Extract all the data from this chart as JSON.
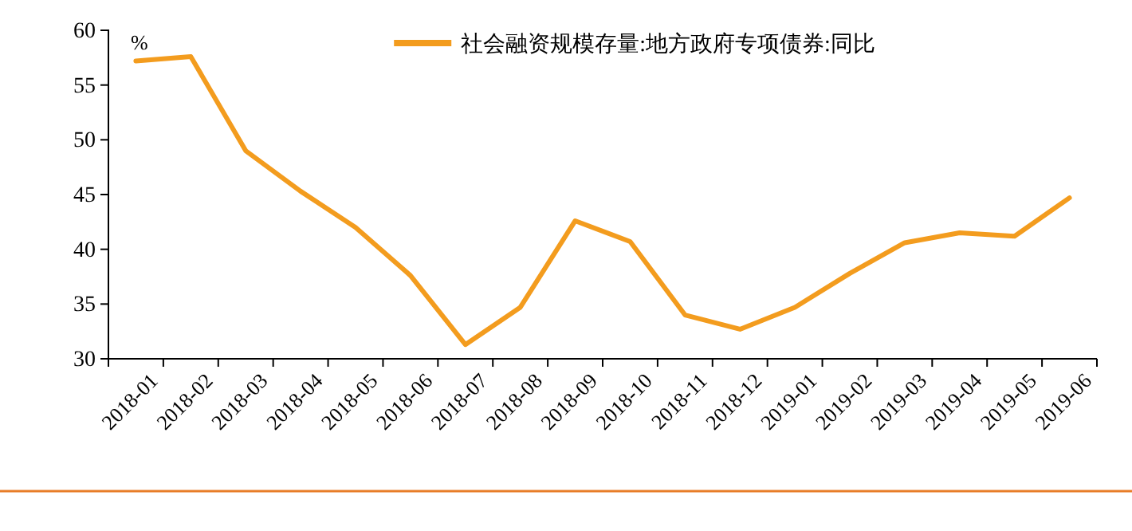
{
  "chart_data": {
    "type": "line",
    "ylabel": "%",
    "categories": [
      "2018-01",
      "2018-02",
      "2018-03",
      "2018-04",
      "2018-05",
      "2018-06",
      "2018-07",
      "2018-08",
      "2018-09",
      "2018-10",
      "2018-11",
      "2018-12",
      "2019-01",
      "2019-02",
      "2019-03",
      "2019-04",
      "2019-05",
      "2019-06"
    ],
    "series": [
      {
        "name": "社会融资规模存量:地方政府专项债券:同比",
        "color": "#f39c1e",
        "values": [
          57.2,
          57.6,
          49.0,
          45.3,
          42.0,
          37.6,
          31.3,
          34.7,
          42.6,
          40.7,
          34.0,
          32.7,
          34.7,
          37.8,
          40.6,
          41.5,
          41.2,
          44.7
        ]
      }
    ],
    "ylim": [
      30,
      60
    ],
    "yticks": [
      30,
      35,
      40,
      45,
      50,
      55,
      60
    ],
    "grid": false,
    "legend": "top",
    "line_style": "solid",
    "marker": "none"
  }
}
